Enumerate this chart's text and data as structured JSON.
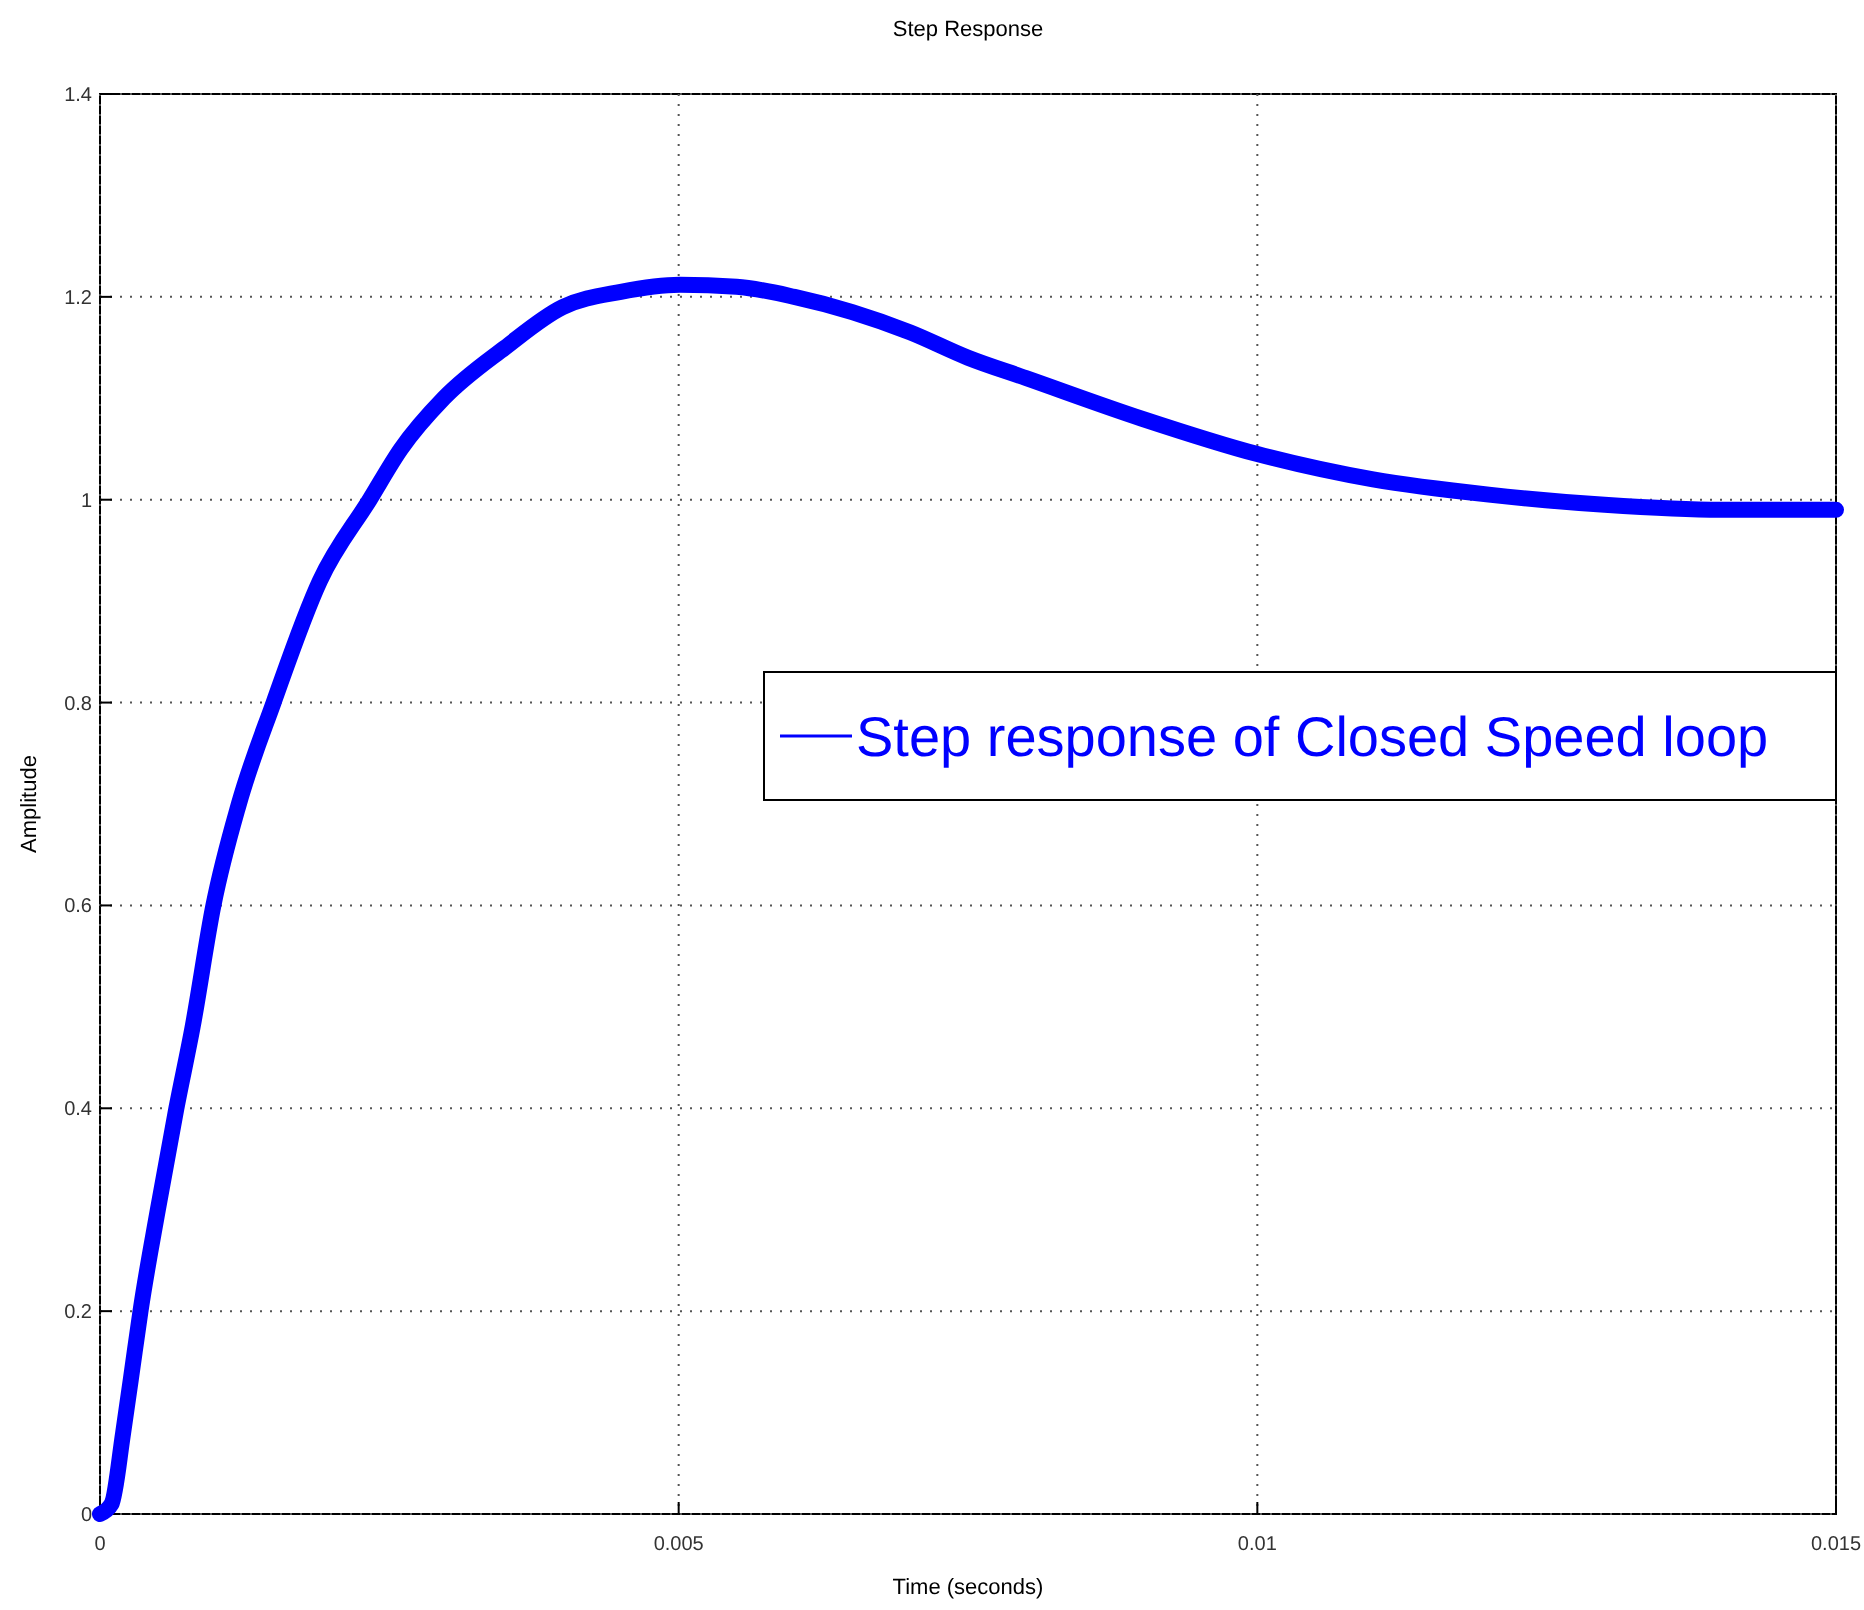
{
  "chart_data": {
    "type": "line",
    "title": "Step Response",
    "xlabel": "Time (seconds)",
    "ylabel": "Amplitude",
    "xlim": [
      0,
      0.015
    ],
    "xticks": [
      0,
      0.005,
      0.01,
      0.015
    ],
    "ylim": [
      0,
      1.4
    ],
    "yticks": [
      0,
      0.2,
      0.4,
      0.6,
      0.8,
      1,
      1.2,
      1.4
    ],
    "grid": true,
    "legend": "right",
    "line_style": "solid",
    "marker": "none",
    "x": [
      0,
      0.0001,
      0.0002,
      0.0003,
      0.00035,
      0.0005,
      0.00066,
      0.0008,
      0.00098,
      0.0012,
      0.0015,
      0.0019,
      0.00233,
      0.0026,
      0.00297,
      0.0035,
      0.004,
      0.0045,
      0.00501,
      0.0055,
      0.006,
      0.0065,
      0.007,
      0.0075,
      0.008,
      0.009,
      0.01,
      0.011,
      0.012,
      0.013,
      0.014,
      0.015
    ],
    "series": [
      {
        "name": "Step response of Closed Speed loop",
        "color": "#0000ff",
        "values": [
          0,
          0.01,
          0.08,
          0.16,
          0.2,
          0.3,
          0.4,
          0.48,
          0.6,
          0.7,
          0.8,
          0.92,
          1.0,
          1.05,
          1.1,
          1.15,
          1.19,
          1.205,
          1.212,
          1.21,
          1.2,
          1.185,
          1.165,
          1.14,
          1.12,
          1.08,
          1.045,
          1.02,
          1.005,
          0.995,
          0.99,
          0.99
        ]
      }
    ]
  }
}
